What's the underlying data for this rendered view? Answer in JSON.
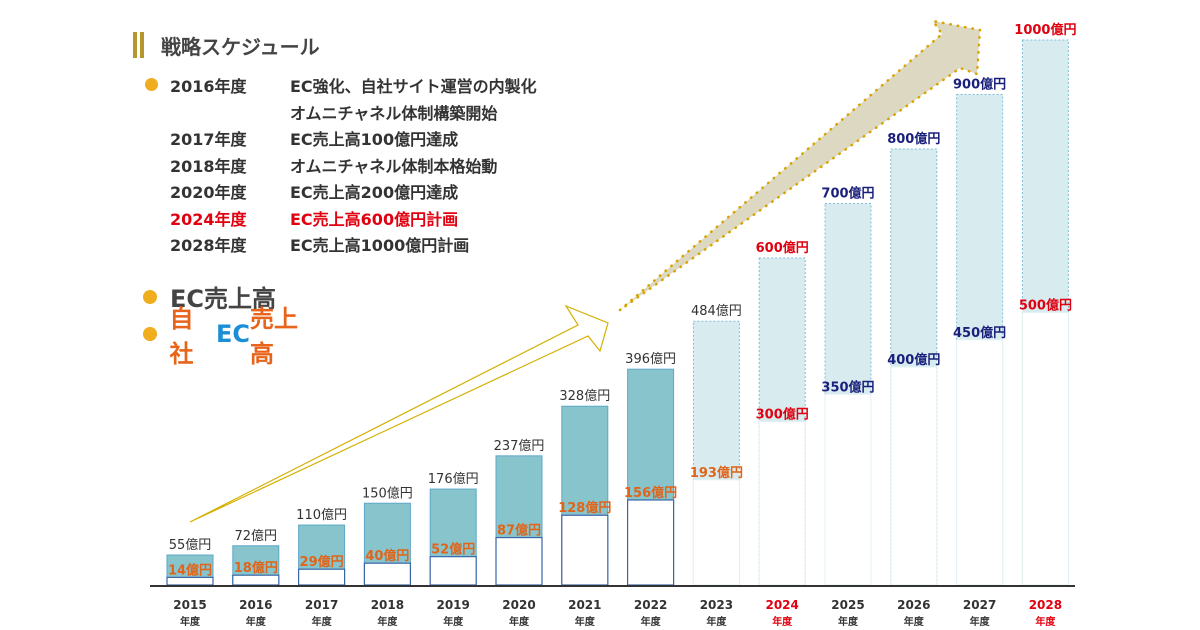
{
  "header": {
    "title": "戦略スケジュール"
  },
  "schedule": [
    {
      "year": "2016年度",
      "text": "EC強化、自社サイト運営の内製化",
      "highlight": false
    },
    {
      "year": "",
      "text": "オムニチャネル体制構築開始",
      "highlight": false
    },
    {
      "year": "2017年度",
      "text": "EC売上高100億円達成",
      "highlight": false
    },
    {
      "year": "2018年度",
      "text": "オムニチャネル体制本格始動",
      "highlight": false
    },
    {
      "year": "2020年度",
      "text": "EC売上高200億円達成",
      "highlight": false
    },
    {
      "year": "2024年度",
      "text": "EC売上高600億円計画",
      "highlight": true
    },
    {
      "year": "2028年度",
      "text": "EC売上高1000億円計画",
      "highlight": false
    }
  ],
  "legend": {
    "ec_total": "EC売上高",
    "own_prefix": "自社",
    "own_ec": "EC",
    "own_suffix": "売上高"
  },
  "colors": {
    "actual_bar": "#88c4cc",
    "plan_bar": "#d8ecf0",
    "text_dark": "#333333",
    "red": "#e0000f",
    "navy": "#1a1f7a",
    "orange": "#e0651a",
    "accent": "#f0ad1e"
  },
  "chart_data": {
    "type": "bar",
    "title": "戦略スケジュール",
    "unit": "億円",
    "year_suffix": "年度",
    "ylim": [
      0,
      1000
    ],
    "categories": [
      "2015",
      "2016",
      "2017",
      "2018",
      "2019",
      "2020",
      "2021",
      "2022",
      "2023",
      "2024",
      "2025",
      "2026",
      "2027",
      "2028"
    ],
    "series": [
      {
        "name": "EC売上高",
        "values": [
          55,
          72,
          110,
          150,
          176,
          237,
          328,
          396,
          484,
          600,
          700,
          800,
          900,
          1000
        ]
      },
      {
        "name": "自社EC売上高",
        "values": [
          14,
          18,
          29,
          40,
          52,
          87,
          128,
          156,
          193,
          300,
          350,
          400,
          450,
          500
        ]
      }
    ],
    "plan_from_index": 8,
    "label_tone": [
      "dark",
      "dark",
      "dark",
      "dark",
      "dark",
      "dark",
      "dark",
      "dark",
      "dark",
      "red",
      "navy",
      "navy",
      "navy",
      "red"
    ],
    "year_highlight": [
      false,
      false,
      false,
      false,
      false,
      false,
      false,
      false,
      false,
      true,
      false,
      false,
      false,
      true
    ]
  }
}
